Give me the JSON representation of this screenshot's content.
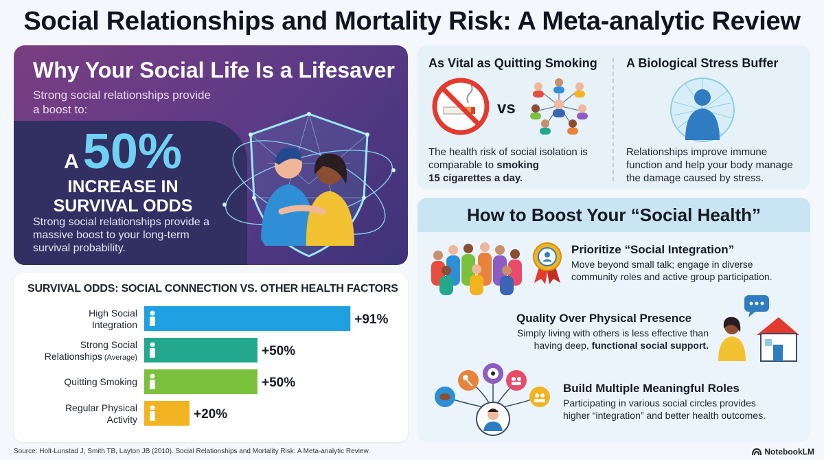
{
  "title": "Social Relationships and Mortality Risk: A Meta-analytic Review",
  "hero": {
    "title": "Why Your Social Life Is a Lifesaver",
    "subtitle": "Strong social relationships provide a boost to:",
    "stat_prefix": "A",
    "stat_value": "50%",
    "stat_line1": "INCREASE IN",
    "stat_line2": "SURVIVAL ODDS",
    "description": "Strong social relationships provide a massive boost to your long-term survival probability."
  },
  "chart_data": {
    "type": "bar",
    "title": "SURVIVAL ODDS: SOCIAL CONNECTION VS. OTHER HEALTH FACTORS",
    "categories": [
      {
        "line1": "High Social",
        "line2": "Integration",
        "note": ""
      },
      {
        "line1": "Strong Social",
        "line2": "Relationships",
        "note": "(Average)"
      },
      {
        "line1": "Quitting Smoking",
        "line2": "",
        "note": ""
      },
      {
        "line1": "Regular Physical",
        "line2": "Activity",
        "note": ""
      }
    ],
    "values": [
      91,
      50,
      50,
      20
    ],
    "value_labels": [
      "+91%",
      "+50%",
      "+50%",
      "+20%"
    ],
    "colors": [
      "#1fa0e2",
      "#23a88e",
      "#7cc13e",
      "#f2b321"
    ],
    "xlim": [
      0,
      100
    ],
    "unit": "%"
  },
  "smoking": {
    "title": "As Vital as Quitting Smoking",
    "vs": "vs",
    "text_plain": "The health risk of social isolation is comparable to",
    "text_bold1": "smoking",
    "text_bold2": "15 cigarettes a day."
  },
  "buffer": {
    "title": "A Biological Stress Buffer",
    "text": "Relationships improve immune function and help your body manage the damage caused by stress."
  },
  "boost": {
    "title": "How to Boost Your “Social Health”",
    "tips": [
      {
        "title": "Prioritize “Social Integration”",
        "line1": "Move beyond small talk; engage in diverse",
        "line2": "community roles and active group participation."
      },
      {
        "title": "Quality Over Physical Presence",
        "line1": "Simply living with others is less effective than",
        "line2_plain": "having deep,",
        "line2_bold": "functional social support."
      },
      {
        "title": "Build Multiple Meaningful Roles",
        "line1": "Participating in various social circles provides",
        "line2": "higher “integration” and better health outcomes."
      }
    ]
  },
  "source": "Source: Holt-Lunstad J, Smith TB, Layton JB (2010). Social Relationships and Mortality Risk: A Meta-analytic Review.",
  "brand": "NotebookLM"
}
